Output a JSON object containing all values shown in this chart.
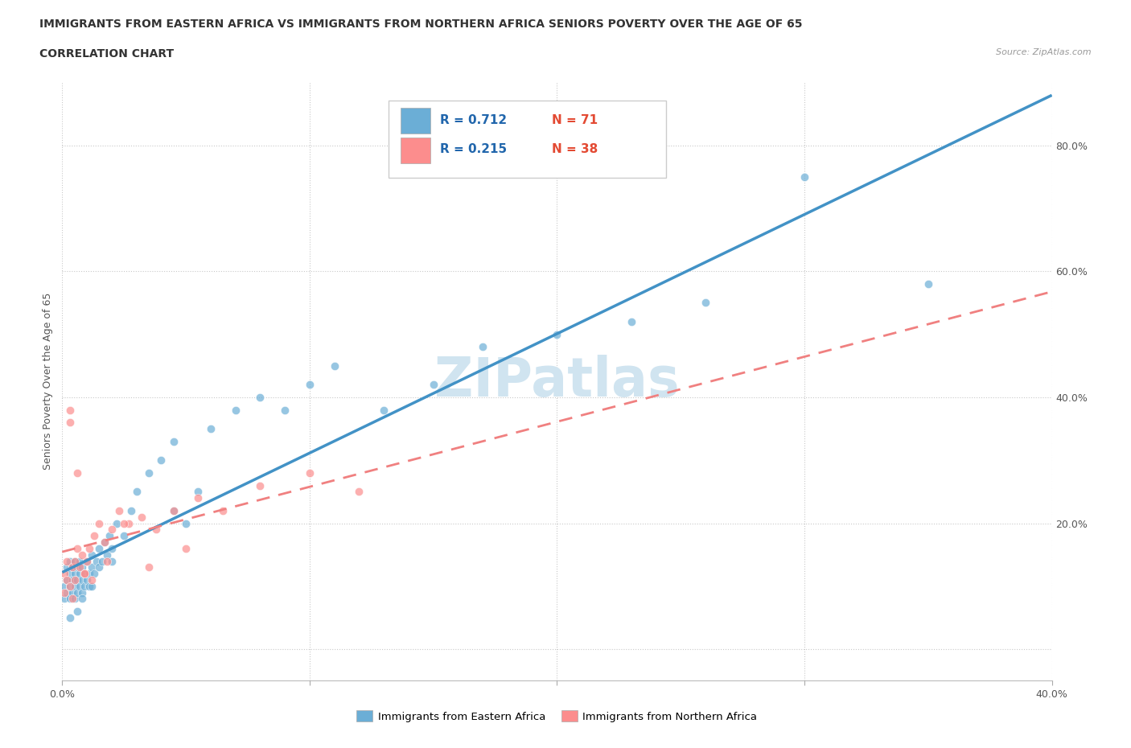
{
  "title_line1": "IMMIGRANTS FROM EASTERN AFRICA VS IMMIGRANTS FROM NORTHERN AFRICA SENIORS POVERTY OVER THE AGE OF 65",
  "title_line2": "CORRELATION CHART",
  "source": "Source: ZipAtlas.com",
  "ylabel": "Seniors Poverty Over the Age of 65",
  "xlim": [
    0.0,
    0.4
  ],
  "ylim": [
    -0.05,
    0.9
  ],
  "color_eastern": "#6baed6",
  "color_northern": "#fc8d8d",
  "color_eastern_line": "#4292c6",
  "color_northern_line": "#f08080",
  "R_eastern": 0.712,
  "N_eastern": 71,
  "R_northern": 0.215,
  "N_northern": 38,
  "legend_R_color": "#2166ac",
  "legend_N_color": "#e34a33",
  "watermark": "ZIPatlas",
  "watermark_color": "#d0e4f0",
  "background_color": "#ffffff",
  "grid_color": "#cccccc",
  "eastern_x": [
    0.001,
    0.001,
    0.002,
    0.002,
    0.002,
    0.003,
    0.003,
    0.003,
    0.003,
    0.004,
    0.004,
    0.004,
    0.005,
    0.005,
    0.005,
    0.005,
    0.006,
    0.006,
    0.006,
    0.007,
    0.007,
    0.007,
    0.008,
    0.008,
    0.008,
    0.009,
    0.009,
    0.01,
    0.01,
    0.011,
    0.011,
    0.012,
    0.012,
    0.013,
    0.014,
    0.015,
    0.015,
    0.016,
    0.017,
    0.018,
    0.019,
    0.02,
    0.022,
    0.025,
    0.028,
    0.03,
    0.035,
    0.04,
    0.045,
    0.05,
    0.055,
    0.06,
    0.07,
    0.08,
    0.09,
    0.1,
    0.11,
    0.13,
    0.15,
    0.17,
    0.2,
    0.23,
    0.26,
    0.3,
    0.35,
    0.006,
    0.003,
    0.008,
    0.012,
    0.02,
    0.045
  ],
  "eastern_y": [
    0.1,
    0.08,
    0.11,
    0.09,
    0.13,
    0.1,
    0.12,
    0.14,
    0.08,
    0.11,
    0.09,
    0.13,
    0.1,
    0.12,
    0.08,
    0.14,
    0.11,
    0.09,
    0.13,
    0.1,
    0.12,
    0.14,
    0.11,
    0.09,
    0.13,
    0.1,
    0.12,
    0.11,
    0.14,
    0.12,
    0.1,
    0.13,
    0.15,
    0.12,
    0.14,
    0.13,
    0.16,
    0.14,
    0.17,
    0.15,
    0.18,
    0.16,
    0.2,
    0.18,
    0.22,
    0.25,
    0.28,
    0.3,
    0.33,
    0.2,
    0.25,
    0.35,
    0.38,
    0.4,
    0.38,
    0.42,
    0.45,
    0.38,
    0.42,
    0.48,
    0.5,
    0.52,
    0.55,
    0.75,
    0.58,
    0.06,
    0.05,
    0.08,
    0.1,
    0.14,
    0.22
  ],
  "northern_x": [
    0.001,
    0.001,
    0.002,
    0.002,
    0.003,
    0.003,
    0.004,
    0.004,
    0.005,
    0.005,
    0.006,
    0.007,
    0.008,
    0.009,
    0.01,
    0.011,
    0.013,
    0.015,
    0.017,
    0.02,
    0.023,
    0.027,
    0.032,
    0.038,
    0.045,
    0.055,
    0.065,
    0.08,
    0.1,
    0.12,
    0.003,
    0.006,
    0.009,
    0.012,
    0.018,
    0.025,
    0.035,
    0.05
  ],
  "northern_y": [
    0.12,
    0.09,
    0.11,
    0.14,
    0.36,
    0.1,
    0.13,
    0.08,
    0.11,
    0.14,
    0.16,
    0.13,
    0.15,
    0.12,
    0.14,
    0.16,
    0.18,
    0.2,
    0.17,
    0.19,
    0.22,
    0.2,
    0.21,
    0.19,
    0.22,
    0.24,
    0.22,
    0.26,
    0.28,
    0.25,
    0.38,
    0.28,
    0.12,
    0.11,
    0.14,
    0.2,
    0.13,
    0.16
  ]
}
